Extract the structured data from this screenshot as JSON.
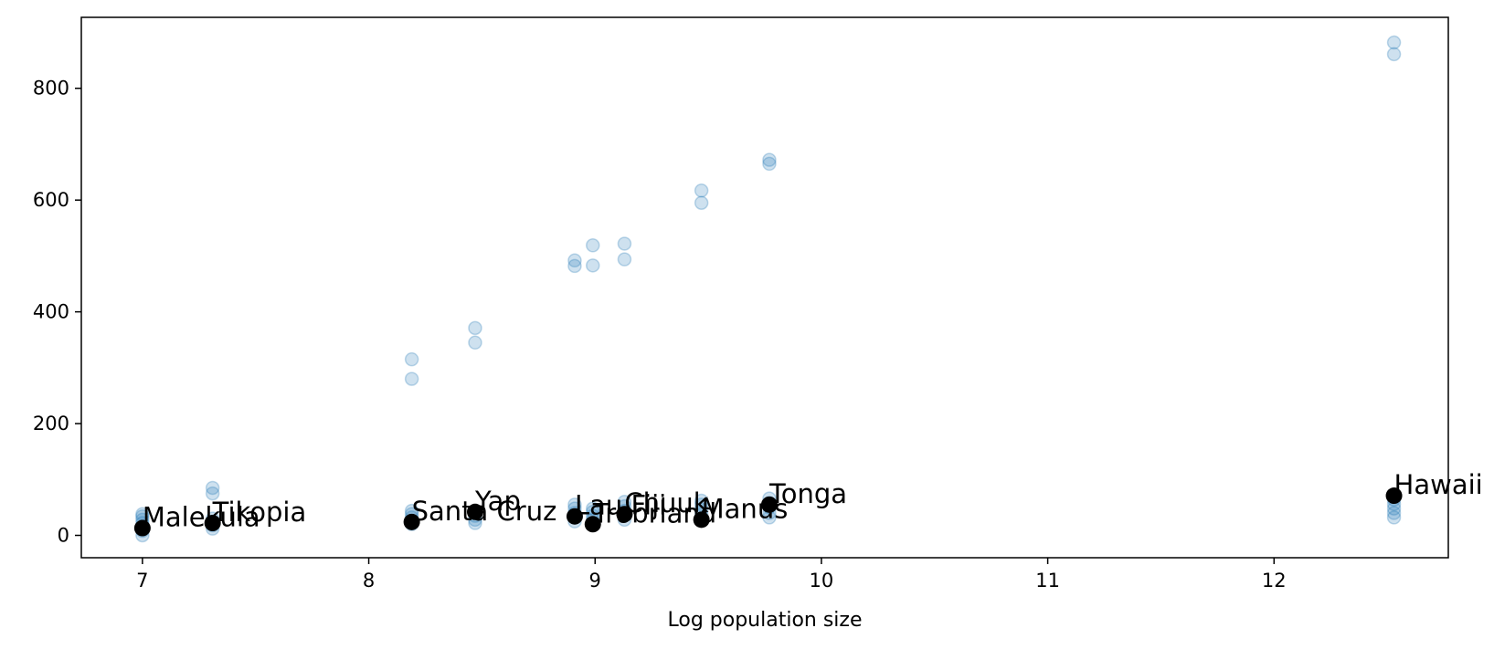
{
  "chart_data": {
    "type": "scatter",
    "title": "",
    "xlabel": "Log population size",
    "ylabel": "",
    "xlim": [
      6.73,
      12.77
    ],
    "ylim": [
      -40,
      927
    ],
    "grid": false,
    "x_ticks": [
      7,
      8,
      9,
      10,
      11,
      12
    ],
    "y_ticks": [
      0,
      200,
      400,
      600,
      800
    ],
    "colors": {
      "samples": "#1f77b4",
      "means": "#000000"
    },
    "sample_points": [
      {
        "x": 7.0,
        "y": 0
      },
      {
        "x": 7.0,
        "y": 8
      },
      {
        "x": 7.0,
        "y": 15
      },
      {
        "x": 7.0,
        "y": 22
      },
      {
        "x": 7.0,
        "y": 28
      },
      {
        "x": 7.0,
        "y": 34
      },
      {
        "x": 7.0,
        "y": 38
      },
      {
        "x": 7.31,
        "y": 85
      },
      {
        "x": 7.31,
        "y": 75
      },
      {
        "x": 7.31,
        "y": 12
      },
      {
        "x": 7.31,
        "y": 18
      },
      {
        "x": 7.31,
        "y": 25
      },
      {
        "x": 7.31,
        "y": 30
      },
      {
        "x": 8.19,
        "y": 315
      },
      {
        "x": 8.19,
        "y": 280
      },
      {
        "x": 8.19,
        "y": 20
      },
      {
        "x": 8.19,
        "y": 25
      },
      {
        "x": 8.19,
        "y": 32
      },
      {
        "x": 8.19,
        "y": 38
      },
      {
        "x": 8.19,
        "y": 44
      },
      {
        "x": 8.47,
        "y": 371
      },
      {
        "x": 8.47,
        "y": 345
      },
      {
        "x": 8.47,
        "y": 22
      },
      {
        "x": 8.47,
        "y": 28
      },
      {
        "x": 8.47,
        "y": 35
      },
      {
        "x": 8.47,
        "y": 42
      },
      {
        "x": 8.91,
        "y": 492
      },
      {
        "x": 8.91,
        "y": 482
      },
      {
        "x": 8.91,
        "y": 25
      },
      {
        "x": 8.91,
        "y": 32
      },
      {
        "x": 8.91,
        "y": 40
      },
      {
        "x": 8.91,
        "y": 48
      },
      {
        "x": 8.91,
        "y": 55
      },
      {
        "x": 8.99,
        "y": 519
      },
      {
        "x": 8.99,
        "y": 483
      },
      {
        "x": 8.99,
        "y": 28
      },
      {
        "x": 8.99,
        "y": 35
      },
      {
        "x": 8.99,
        "y": 42
      },
      {
        "x": 8.99,
        "y": 48
      },
      {
        "x": 9.13,
        "y": 522
      },
      {
        "x": 9.13,
        "y": 494
      },
      {
        "x": 9.13,
        "y": 28
      },
      {
        "x": 9.13,
        "y": 36
      },
      {
        "x": 9.13,
        "y": 44
      },
      {
        "x": 9.13,
        "y": 52
      },
      {
        "x": 9.13,
        "y": 60
      },
      {
        "x": 9.47,
        "y": 617
      },
      {
        "x": 9.47,
        "y": 595
      },
      {
        "x": 9.47,
        "y": 30
      },
      {
        "x": 9.47,
        "y": 38
      },
      {
        "x": 9.47,
        "y": 46
      },
      {
        "x": 9.47,
        "y": 55
      },
      {
        "x": 9.47,
        "y": 62
      },
      {
        "x": 9.77,
        "y": 672
      },
      {
        "x": 9.77,
        "y": 665
      },
      {
        "x": 9.77,
        "y": 32
      },
      {
        "x": 9.77,
        "y": 40
      },
      {
        "x": 9.77,
        "y": 50
      },
      {
        "x": 9.77,
        "y": 58
      },
      {
        "x": 9.77,
        "y": 66
      },
      {
        "x": 12.53,
        "y": 882
      },
      {
        "x": 12.53,
        "y": 861
      },
      {
        "x": 12.53,
        "y": 32
      },
      {
        "x": 12.53,
        "y": 40
      },
      {
        "x": 12.53,
        "y": 48
      },
      {
        "x": 12.53,
        "y": 56
      },
      {
        "x": 12.53,
        "y": 64
      }
    ],
    "mean_points": [
      {
        "name": "Malekula",
        "x": 7.0,
        "y": 13
      },
      {
        "name": "Tikopia",
        "x": 7.31,
        "y": 22
      },
      {
        "name": "Santa Cruz",
        "x": 8.19,
        "y": 24
      },
      {
        "name": "Yap",
        "x": 8.47,
        "y": 42
      },
      {
        "name": "Lau Fiji",
        "x": 8.91,
        "y": 34
      },
      {
        "name": "Trobriand",
        "x": 8.99,
        "y": 20
      },
      {
        "name": "Chuuk",
        "x": 9.13,
        "y": 38
      },
      {
        "name": "Manus",
        "x": 9.47,
        "y": 28
      },
      {
        "name": "Tonga",
        "x": 9.77,
        "y": 55
      },
      {
        "name": "Hawaii",
        "x": 12.53,
        "y": 71
      }
    ]
  }
}
